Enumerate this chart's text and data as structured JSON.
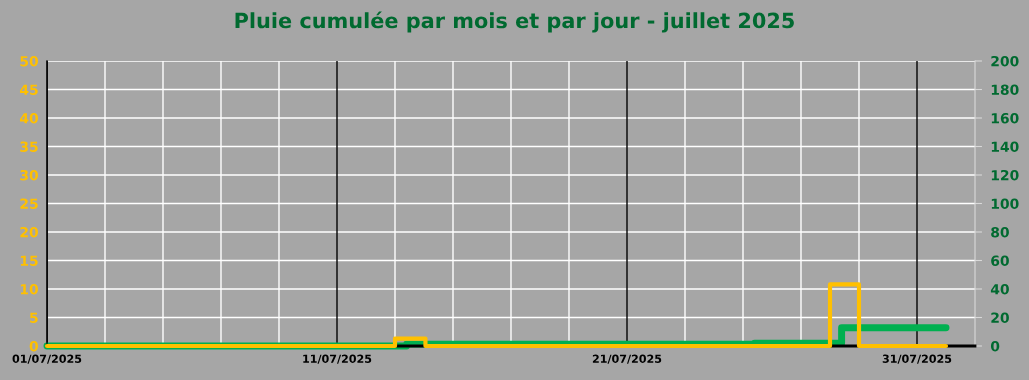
{
  "chart_data": {
    "type": "step",
    "title": "Pluie cumulée par mois et par jour - juillet 2025",
    "series": [
      {
        "color": "#ffc000",
        "axis": "y",
        "x": [
          "2025-07-01",
          "2025-07-13",
          "2025-07-14T01:12",
          "2025-07-28",
          "2025-07-29",
          "2025-08-01"
        ],
        "values": [
          0,
          1.3,
          0,
          10.8,
          0,
          0
        ]
      },
      {
        "color": "#00b050",
        "axis": "y2",
        "x": [
          "2025-07-01",
          "2025-07-13T09:36",
          "2025-07-25T09:36",
          "2025-07-28T09:36",
          "2025-08-01"
        ],
        "values": [
          0,
          1.3,
          2,
          12.8,
          12.8
        ]
      }
    ],
    "xlim": [
      "2025-07-01",
      "2025-08-02"
    ],
    "xticks": [
      {
        "value": "2025-07-01",
        "label": "01/07/2025"
      },
      {
        "value": "2025-07-03",
        "label": null
      },
      {
        "value": "2025-07-05",
        "label": null
      },
      {
        "value": "2025-07-07",
        "label": null
      },
      {
        "value": "2025-07-09",
        "label": null
      },
      {
        "value": "2025-07-11",
        "label": "11/07/2025"
      },
      {
        "value": "2025-07-13",
        "label": null
      },
      {
        "value": "2025-07-15",
        "label": null
      },
      {
        "value": "2025-07-17",
        "label": null
      },
      {
        "value": "2025-07-19",
        "label": null
      },
      {
        "value": "2025-07-21",
        "label": "21/07/2025"
      },
      {
        "value": "2025-07-23",
        "label": null
      },
      {
        "value": "2025-07-25",
        "label": null
      },
      {
        "value": "2025-07-27",
        "label": null
      },
      {
        "value": "2025-07-29",
        "label": null
      },
      {
        "value": "2025-07-31",
        "label": "31/07/2025"
      }
    ],
    "ylim": [
      0,
      50
    ],
    "yticks": [
      0,
      5,
      10,
      15,
      20,
      25,
      30,
      35,
      40,
      45,
      50
    ],
    "y2lim": [
      0,
      200
    ],
    "y2ticks": [
      0,
      20,
      40,
      60,
      80,
      100,
      120,
      140,
      160,
      180,
      200
    ],
    "grid": true,
    "line_style": "solid",
    "marker": "none"
  }
}
